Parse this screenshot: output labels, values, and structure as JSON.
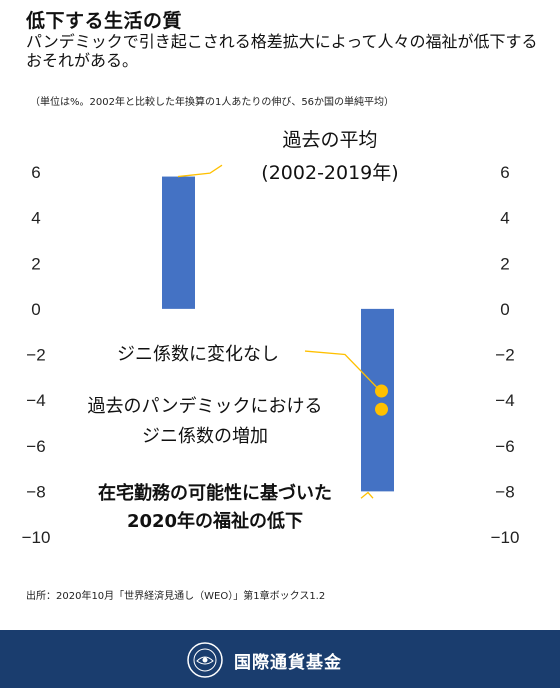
{
  "header": {
    "title": "低下する生活の質",
    "subtitle": "パンデミックで引き起こされる格差拡大によって人々の福祉が低下するおそれがある。",
    "note": "（単位は%。2002年と比較した年換算の1人あたりの伸び、56か国の単純平均）"
  },
  "chart_data": {
    "type": "bar",
    "categories": [
      "過去の平均",
      "2020年の福祉の低下"
    ],
    "values": [
      5.8,
      -8.0
    ],
    "points": [
      {
        "label": "ジニ係数に変化なし",
        "value": -3.6
      },
      {
        "label": "過去のパンデミックにおけるジニ係数の増加",
        "value": -4.4
      }
    ],
    "annotations": [
      {
        "lines": [
          "過去の平均",
          "(2002-2019年)"
        ]
      },
      {
        "lines": [
          "ジニ係数に変化なし"
        ]
      },
      {
        "lines": [
          "過去のパンデミックにおける",
          "ジニ係数の増加"
        ]
      },
      {
        "lines": [
          "在宅勤務の可能性に基づいた",
          "2020年の福祉の低下"
        ]
      }
    ],
    "ylim": [
      -10,
      6
    ],
    "yticks": [
      6,
      4,
      2,
      0,
      -2,
      -4,
      -6,
      -8,
      -10
    ],
    "tick_labels": [
      "6",
      "4",
      "2",
      "0",
      "−2",
      "−4",
      "−6",
      "−8",
      "−10"
    ],
    "colors": {
      "bar": "#4472c4",
      "point": "#ffc000",
      "leader": "#ffc000"
    }
  },
  "footer": {
    "source": "出所：2020年10月「世界経済見通し（WEO）」第1章ボックス1.2",
    "org_name": "国際通貨基金",
    "logo_icon": "imf-seal-icon",
    "bg_color": "#1a3d6e"
  }
}
